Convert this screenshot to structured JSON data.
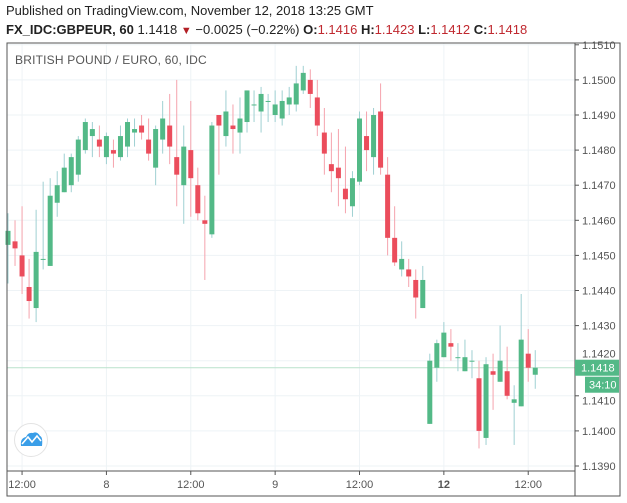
{
  "header": {
    "published": "Published on TradingView.com, November 12, 2018 13:25 GMT",
    "symbol": "FX_IDC:GBPEUR, 60",
    "last": "1.1418",
    "change_direction_icon": "triangle-down",
    "change": "−0.0025 (−0.22%)",
    "o_label": "O:",
    "o": "1.1416",
    "h_label": "H:",
    "h": "1.1423",
    "l_label": "L:",
    "l": "1.1412",
    "c_label": "C:",
    "c": "1.1418"
  },
  "chart_title": "BRITISH POUND / EURO, 60, IDC",
  "colors": {
    "up": "#53b987",
    "down": "#eb4d5c",
    "up_wick": "#9fd0d2",
    "down_wick": "#f5a3ad",
    "grid": "#eef3f6",
    "axis_text": "#555555",
    "price_label_bg": "#53b987"
  },
  "logo_icon": "tradingview-cloud-icon",
  "chart_data": {
    "type": "candlestick",
    "title": "BRITISH POUND / EURO, 60, IDC",
    "ylim": [
      1.139,
      1.151
    ],
    "y_ticks": [
      "1.1390",
      "1.1400",
      "1.1410",
      "1.1420",
      "1.1430",
      "1.1440",
      "1.1450",
      "1.1460",
      "1.1470",
      "1.1480",
      "1.1490",
      "1.1500",
      "1.1510"
    ],
    "x_ticks": [
      {
        "label": "12:00",
        "time": "Nov 7 12:00",
        "bold": false
      },
      {
        "label": "8",
        "time": "Nov 8 00:00",
        "bold": false
      },
      {
        "label": "12:00",
        "time": "Nov 8 12:00",
        "bold": false
      },
      {
        "label": "9",
        "time": "Nov 9 00:00",
        "bold": false
      },
      {
        "label": "12:00",
        "time": "Nov 9 12:00",
        "bold": false
      },
      {
        "label": "12",
        "time": "Nov 12 00:00",
        "bold": true
      },
      {
        "label": "12:00",
        "time": "Nov 12 12:00",
        "bold": false
      }
    ],
    "grid": true,
    "current_price": {
      "value": 1.1418,
      "label": "1.1418",
      "countdown": "34:10"
    },
    "candles_format": [
      "time",
      "open",
      "high",
      "low",
      "close"
    ],
    "candles": [
      [
        "Nov 7 10:00",
        1.1453,
        1.1462,
        1.1442,
        1.1457
      ],
      [
        "Nov 7 11:00",
        1.1454,
        1.146,
        1.1447,
        1.1452
      ],
      [
        "Nov 7 12:00",
        1.145,
        1.1464,
        1.1439,
        1.1444
      ],
      [
        "Nov 7 13:00",
        1.1441,
        1.1449,
        1.1432,
        1.1437
      ],
      [
        "Nov 7 14:00",
        1.1435,
        1.1463,
        1.1431,
        1.1451
      ],
      [
        "Nov 7 15:00",
        1.1449,
        1.1471,
        1.1446,
        1.1449
      ],
      [
        "Nov 7 16:00",
        1.1447,
        1.1472,
        1.1447,
        1.1467
      ],
      [
        "Nov 7 17:00",
        1.1465,
        1.1474,
        1.1461,
        1.147
      ],
      [
        "Nov 7 18:00",
        1.1468,
        1.1479,
        1.1468,
        1.1475
      ],
      [
        "Nov 7 19:00",
        1.147,
        1.1479,
        1.1468,
        1.1478
      ],
      [
        "Nov 7 20:00",
        1.1473,
        1.1484,
        1.1471,
        1.1483
      ],
      [
        "Nov 7 21:00",
        1.148,
        1.1489,
        1.1479,
        1.1488
      ],
      [
        "Nov 7 22:00",
        1.1484,
        1.1488,
        1.1478,
        1.1486
      ],
      [
        "Nov 7 23:00",
        1.1483,
        1.1487,
        1.1478,
        1.1481
      ],
      [
        "Nov 8 00:00",
        1.1478,
        1.1485,
        1.1476,
        1.1484
      ],
      [
        "Nov 8 01:00",
        1.148,
        1.1483,
        1.1475,
        1.1479
      ],
      [
        "Nov 8 02:00",
        1.1478,
        1.1487,
        1.1477,
        1.1484
      ],
      [
        "Nov 8 03:00",
        1.1481,
        1.1489,
        1.1478,
        1.1488
      ],
      [
        "Nov 8 04:00",
        1.1485,
        1.1489,
        1.1481,
        1.1486
      ],
      [
        "Nov 8 05:00",
        1.1487,
        1.149,
        1.1483,
        1.1485
      ],
      [
        "Nov 8 06:00",
        1.1483,
        1.1489,
        1.1477,
        1.1479
      ],
      [
        "Nov 8 07:00",
        1.1475,
        1.1487,
        1.147,
        1.1486
      ],
      [
        "Nov 8 08:00",
        1.1483,
        1.1494,
        1.1479,
        1.1489
      ],
      [
        "Nov 8 09:00",
        1.1487,
        1.1496,
        1.1476,
        1.1481
      ],
      [
        "Nov 8 10:00",
        1.1478,
        1.15,
        1.1464,
        1.1473
      ],
      [
        "Nov 8 11:00",
        1.147,
        1.1487,
        1.1459,
        1.1481
      ],
      [
        "Nov 8 12:00",
        1.148,
        1.1494,
        1.1461,
        1.1472
      ],
      [
        "Nov 8 13:00",
        1.147,
        1.1475,
        1.146,
        1.1462
      ],
      [
        "Nov 8 14:00",
        1.146,
        1.1467,
        1.1443,
        1.1459
      ],
      [
        "Nov 8 15:00",
        1.1456,
        1.1488,
        1.1455,
        1.1487
      ],
      [
        "Nov 8 16:00",
        1.149,
        1.149,
        1.1473,
        1.1487
      ],
      [
        "Nov 8 17:00",
        1.1484,
        1.1497,
        1.1481,
        1.1491
      ],
      [
        "Nov 8 18:00",
        1.1487,
        1.1493,
        1.1479,
        1.1486
      ],
      [
        "Nov 8 19:00",
        1.1485,
        1.1495,
        1.1479,
        1.1489
      ],
      [
        "Nov 8 20:00",
        1.1488,
        1.1497,
        1.1485,
        1.1497
      ],
      [
        "Nov 8 21:00",
        1.1493,
        1.1497,
        1.1488,
        1.1493
      ],
      [
        "Nov 8 22:00",
        1.1491,
        1.1498,
        1.1485,
        1.1496
      ],
      [
        "Nov 8 23:00",
        1.1494,
        1.1496,
        1.1488,
        1.1494
      ],
      [
        "Nov 9 00:00",
        1.149,
        1.1497,
        1.1488,
        1.1493
      ],
      [
        "Nov 9 01:00",
        1.1489,
        1.1497,
        1.1487,
        1.1494
      ],
      [
        "Nov 9 02:00",
        1.1493,
        1.1498,
        1.149,
        1.1495
      ],
      [
        "Nov 9 03:00",
        1.1493,
        1.1504,
        1.1491,
        1.1499
      ],
      [
        "Nov 9 04:00",
        1.1497,
        1.1504,
        1.1496,
        1.1502
      ],
      [
        "Nov 9 05:00",
        1.15,
        1.1503,
        1.1492,
        1.1496
      ],
      [
        "Nov 9 06:00",
        1.1495,
        1.15,
        1.1484,
        1.1487
      ],
      [
        "Nov 9 07:00",
        1.1485,
        1.1492,
        1.1473,
        1.1479
      ],
      [
        "Nov 9 08:00",
        1.1476,
        1.1485,
        1.1468,
        1.1474
      ],
      [
        "Nov 9 09:00",
        1.1475,
        1.1486,
        1.1464,
        1.1472
      ],
      [
        "Nov 9 10:00",
        1.1469,
        1.1481,
        1.1462,
        1.1466
      ],
      [
        "Nov 9 11:00",
        1.1464,
        1.1474,
        1.1461,
        1.1472
      ],
      [
        "Nov 9 12:00",
        1.1471,
        1.1491,
        1.147,
        1.1489
      ],
      [
        "Nov 9 13:00",
        1.1484,
        1.1491,
        1.1474,
        1.148
      ],
      [
        "Nov 9 14:00",
        1.1478,
        1.1492,
        1.1473,
        1.149
      ],
      [
        "Nov 9 15:00",
        1.1491,
        1.1499,
        1.1473,
        1.1475
      ],
      [
        "Nov 9 16:00",
        1.1473,
        1.1478,
        1.145,
        1.1455
      ],
      [
        "Nov 9 17:00",
        1.1455,
        1.1464,
        1.1447,
        1.1448
      ],
      [
        "Nov 9 18:00",
        1.1446,
        1.1454,
        1.1444,
        1.1449
      ],
      [
        "Nov 9 19:00",
        1.1446,
        1.1449,
        1.1441,
        1.1444
      ],
      [
        "Nov 9 20:00",
        1.1443,
        1.1446,
        1.1432,
        1.1438
      ],
      [
        "Nov 9 21:00",
        1.1435,
        1.1447,
        1.1435,
        1.1443
      ],
      [
        "Nov 11 22:00",
        1.1402,
        1.1422,
        1.1402,
        1.142
      ],
      [
        "Nov 11 23:00",
        1.1418,
        1.1426,
        1.1414,
        1.1425
      ],
      [
        "Nov 12 00:00",
        1.1421,
        1.1431,
        1.1421,
        1.1428
      ],
      [
        "Nov 12 01:00",
        1.1425,
        1.1429,
        1.142,
        1.1424
      ],
      [
        "Nov 12 02:00",
        1.1421,
        1.1425,
        1.1417,
        1.1421
      ],
      [
        "Nov 12 03:00",
        1.1417,
        1.1426,
        1.1417,
        1.1421
      ],
      [
        "Nov 12 04:00",
        1.142,
        1.1423,
        1.1415,
        1.142
      ],
      [
        "Nov 12 05:00",
        1.1415,
        1.142,
        1.1395,
        1.14
      ],
      [
        "Nov 12 06:00",
        1.1398,
        1.1421,
        1.1396,
        1.1419
      ],
      [
        "Nov 12 07:00",
        1.1417,
        1.1422,
        1.1406,
        1.1416
      ],
      [
        "Nov 12 08:00",
        1.1414,
        1.143,
        1.1414,
        1.142
      ],
      [
        "Nov 12 09:00",
        1.1417,
        1.1424,
        1.1409,
        1.141
      ],
      [
        "Nov 12 10:00",
        1.1408,
        1.1413,
        1.1396,
        1.1409
      ],
      [
        "Nov 12 11:00",
        1.1407,
        1.1439,
        1.1407,
        1.1426
      ],
      [
        "Nov 12 12:00",
        1.1422,
        1.1429,
        1.1414,
        1.1418
      ],
      [
        "Nov 12 13:00",
        1.1416,
        1.1423,
        1.1412,
        1.1418
      ]
    ]
  }
}
